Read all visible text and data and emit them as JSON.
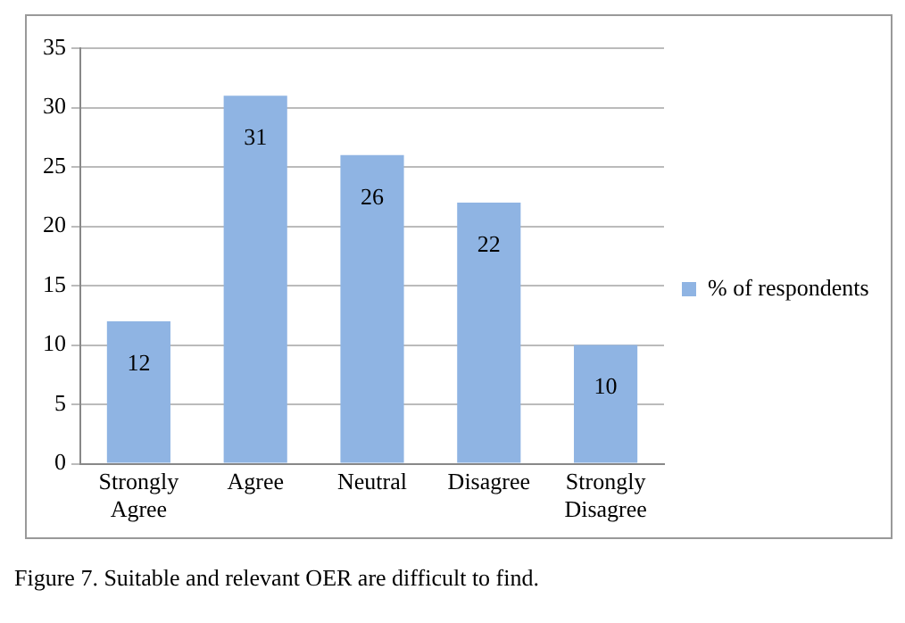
{
  "chart_data": {
    "type": "bar",
    "categories": [
      "Strongly Agree",
      "Agree",
      "Neutral",
      "Disagree",
      "Strongly Disagree"
    ],
    "series": [
      {
        "name": "% of respondents",
        "color": "#8fb4e3",
        "values": [
          12,
          31,
          26,
          22,
          10
        ]
      }
    ],
    "ylim": [
      0,
      35
    ],
    "yticks": [
      0,
      5,
      10,
      15,
      20,
      25,
      30,
      35
    ],
    "grid": "y",
    "legend": "right",
    "data_labels": true,
    "annotations": [
      "Figure 7. Suitable and relevant OER are difficult to find."
    ]
  }
}
